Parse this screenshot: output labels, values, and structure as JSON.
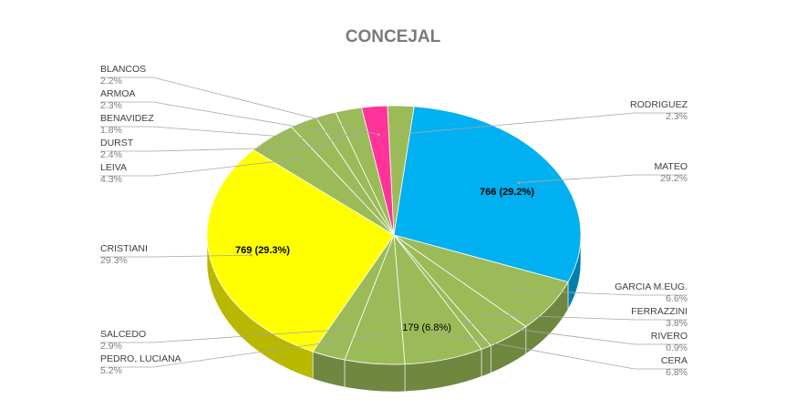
{
  "chart_data": {
    "type": "pie",
    "title": "CONCEJAL",
    "three_d": true,
    "slices": [
      {
        "name": "RODRIGUEZ",
        "value": 60,
        "percent": "2.3%",
        "color": "#9bbb59"
      },
      {
        "name": "MATEO",
        "value": 766,
        "percent": "29.2%",
        "color": "#00b0f0",
        "data_label": "766 (29.2%)"
      },
      {
        "name": "GARCIA M.EUG.",
        "value": 173,
        "percent": "6.6%",
        "color": "#9bbb59"
      },
      {
        "name": "FERRAZZINI",
        "value": 100,
        "percent": "3.8%",
        "color": "#9bbb59"
      },
      {
        "name": "RIVERO",
        "value": 24,
        "percent": "0.9%",
        "color": "#9bbb59"
      },
      {
        "name": "CERA",
        "value": 179,
        "percent": "6.8%",
        "color": "#9bbb59",
        "data_label": "179 (6.8%)"
      },
      {
        "name": "PEDRO, LUCIANA",
        "value": 136,
        "percent": "5.2%",
        "color": "#9bbb59"
      },
      {
        "name": "SALCEDO",
        "value": 76,
        "percent": "2.9%",
        "color": "#9bbb59"
      },
      {
        "name": "CRISTIANI",
        "value": 769,
        "percent": "29.3%",
        "color": "#ffff00",
        "data_label": "769 (29.3%)"
      },
      {
        "name": "LEIVA",
        "value": 113,
        "percent": "4.3%",
        "color": "#9bbb59"
      },
      {
        "name": "DURST",
        "value": 63,
        "percent": "2.4%",
        "color": "#9bbb59"
      },
      {
        "name": "BENAVIDEZ",
        "value": 47,
        "percent": "1.8%",
        "color": "#9bbb59"
      },
      {
        "name": "ARMOA",
        "value": 60,
        "percent": "2.3%",
        "color": "#9bbb59"
      },
      {
        "name": "BLANCOS",
        "value": 58,
        "percent": "2.2%",
        "color": "#ff3399"
      }
    ]
  }
}
